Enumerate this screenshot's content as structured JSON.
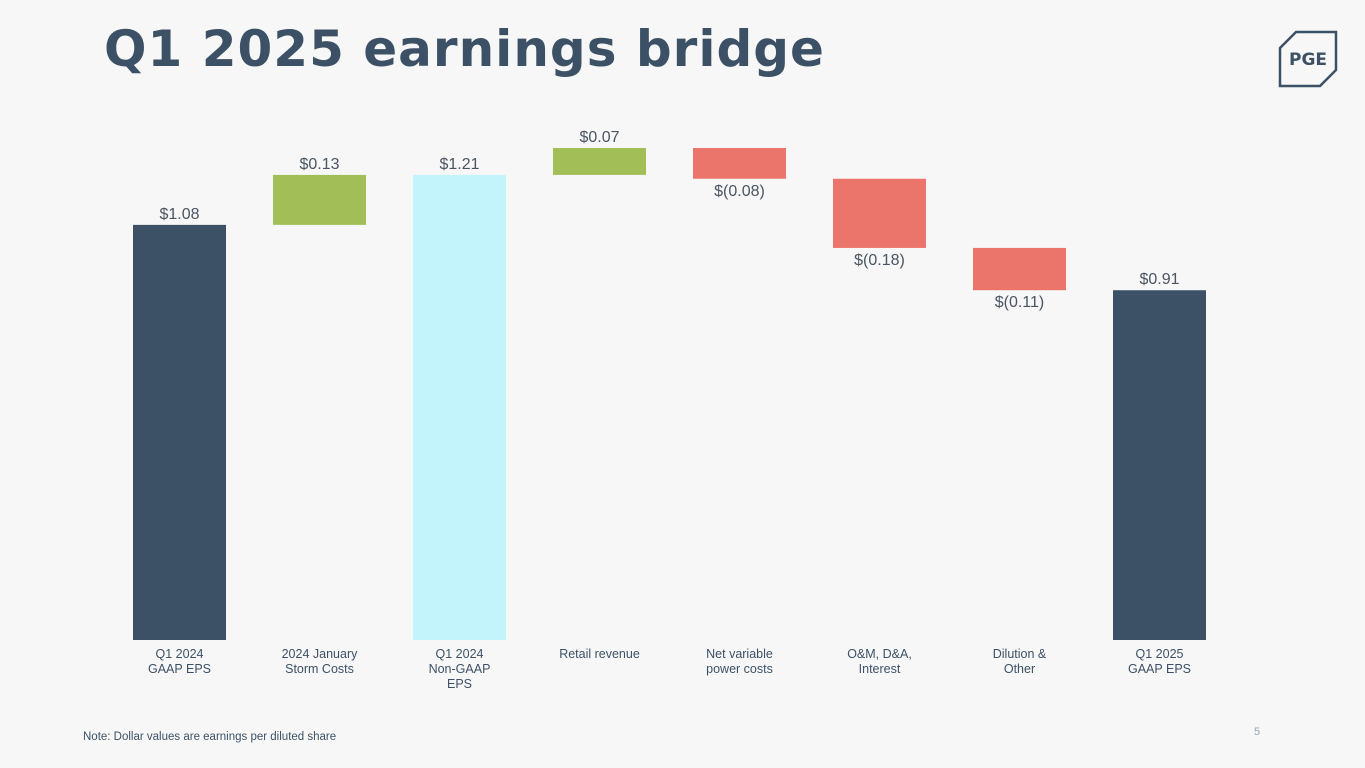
{
  "page": {
    "title": "Q1 2025 earnings bridge",
    "note": "Note: Dollar values are earnings per diluted share",
    "page_number": "5",
    "logo_text": "PGE"
  },
  "colors": {
    "title": "#3d5166",
    "total": "#3d5166",
    "non_gaap": "#c3f3fb",
    "increase": "#a2bf57",
    "decrease": "#eb746b",
    "label": "#3d5166",
    "value_label": "#4a5561"
  },
  "chart_data": {
    "type": "waterfall",
    "title": "Q1 2025 earnings bridge",
    "ylim": [
      0,
      1.28
    ],
    "categories": [
      [
        "Q1 2024",
        "GAAP EPS"
      ],
      [
        "2024 January",
        "Storm Costs"
      ],
      [
        "Q1 2024",
        "Non-GAAP",
        "EPS"
      ],
      [
        "Retail revenue"
      ],
      [
        "Net variable",
        "power costs"
      ],
      [
        "O&M, D&A,",
        "Interest"
      ],
      [
        "Dilution &",
        "Other"
      ],
      [
        "Q1 2025",
        "GAAP EPS"
      ]
    ],
    "bars": [
      {
        "kind": "total",
        "start": 0,
        "end": 1.08,
        "label": "$1.08",
        "label_pos": "above"
      },
      {
        "kind": "increase",
        "start": 1.08,
        "end": 1.21,
        "label": "$0.13",
        "label_pos": "above"
      },
      {
        "kind": "non_gaap",
        "start": 0,
        "end": 1.21,
        "label": "$1.21",
        "label_pos": "above"
      },
      {
        "kind": "increase",
        "start": 1.21,
        "end": 1.28,
        "label": "$0.07",
        "label_pos": "above"
      },
      {
        "kind": "decrease",
        "start": 1.28,
        "end": 1.2,
        "label": "$(0.08)",
        "label_pos": "below"
      },
      {
        "kind": "decrease",
        "start": 1.2,
        "end": 1.02,
        "label": "$(0.18)",
        "label_pos": "below"
      },
      {
        "kind": "decrease",
        "start": 1.02,
        "end": 0.91,
        "label": "$(0.11)",
        "label_pos": "below"
      },
      {
        "kind": "total",
        "start": 0,
        "end": 0.91,
        "label": "$0.91",
        "label_pos": "above"
      }
    ]
  }
}
